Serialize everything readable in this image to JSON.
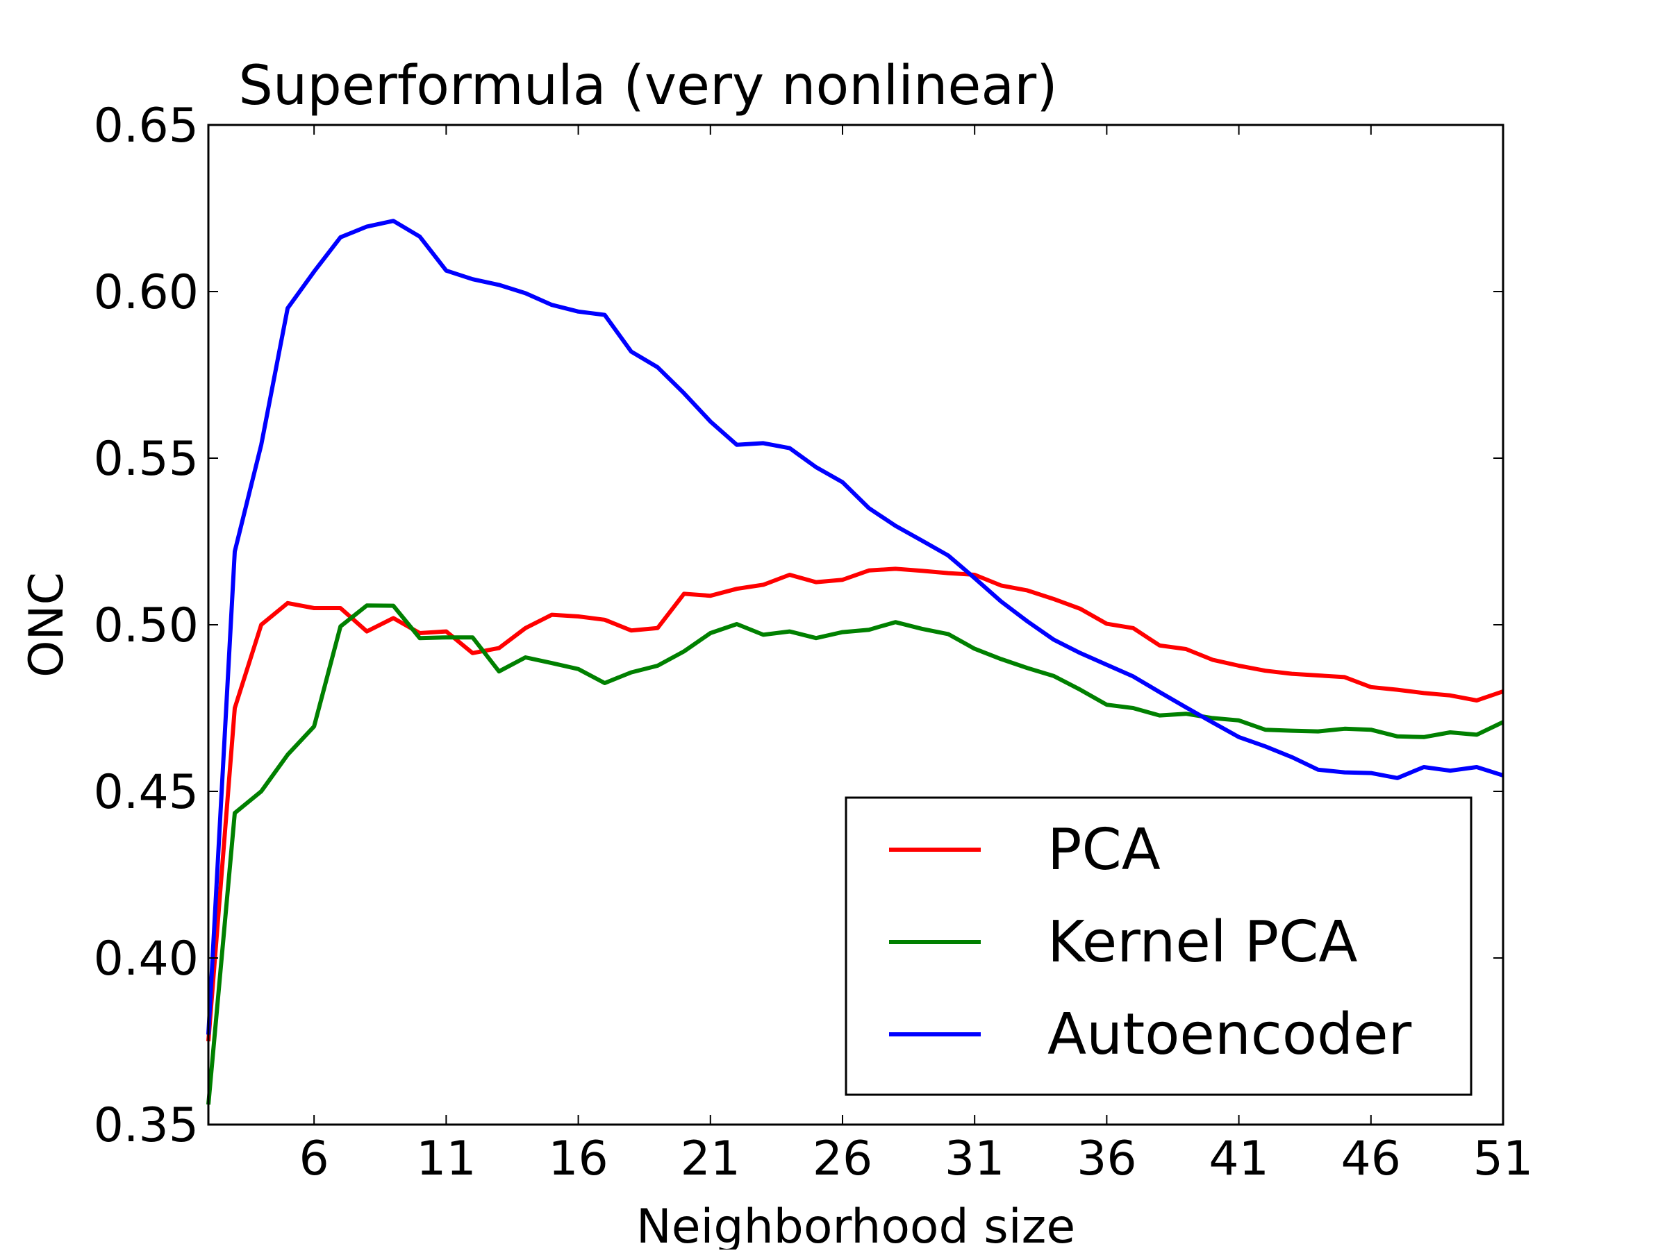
{
  "chart_data": {
    "type": "line",
    "title": "Superformula (very nonlinear)",
    "xlabel": "Neighborhood size",
    "ylabel": "ONC",
    "xlim": [
      2,
      51
    ],
    "ylim": [
      0.35,
      0.65
    ],
    "xticks": [
      6,
      11,
      16,
      21,
      26,
      31,
      36,
      41,
      46,
      51
    ],
    "xtick_labels": [
      "6",
      "11",
      "16",
      "21",
      "26",
      "31",
      "36",
      "41",
      "46",
      "51"
    ],
    "yticks": [
      0.35,
      0.4,
      0.45,
      0.5,
      0.55,
      0.6,
      0.65
    ],
    "ytick_labels": [
      "0.35",
      "0.40",
      "0.45",
      "0.50",
      "0.55",
      "0.60",
      "0.65"
    ],
    "grid": false,
    "legend_position": "lower right",
    "x": [
      2,
      3,
      4,
      5,
      6,
      7,
      8,
      9,
      10,
      11,
      12,
      13,
      14,
      15,
      16,
      17,
      18,
      19,
      20,
      21,
      22,
      23,
      24,
      25,
      26,
      27,
      28,
      29,
      30,
      31,
      32,
      33,
      34,
      35,
      36,
      37,
      38,
      39,
      40,
      41,
      42,
      43,
      44,
      45,
      46,
      47,
      48,
      49,
      50,
      51
    ],
    "series": [
      {
        "name": "PCA",
        "color": "#ff0000",
        "values": [
          0.375,
          0.475,
          0.5,
          0.5065,
          0.505,
          0.505,
          0.498,
          0.502,
          0.4975,
          0.498,
          0.4915,
          0.493,
          0.499,
          0.503,
          0.5025,
          0.5015,
          0.4983,
          0.499,
          0.5093,
          0.5087,
          0.5108,
          0.512,
          0.515,
          0.5128,
          0.5135,
          0.5163,
          0.5168,
          0.5162,
          0.5155,
          0.515,
          0.5118,
          0.5103,
          0.5077,
          0.5048,
          0.5003,
          0.499,
          0.4938,
          0.4927,
          0.4895,
          0.4877,
          0.4862,
          0.4853,
          0.4848,
          0.4843,
          0.4813,
          0.4805,
          0.4795,
          0.4788,
          0.4773,
          0.48
        ]
      },
      {
        "name": "Kernel PCA",
        "color": "#008000",
        "values": [
          0.356,
          0.4435,
          0.45,
          0.461,
          0.4695,
          0.4995,
          0.5058,
          0.5057,
          0.496,
          0.4962,
          0.4962,
          0.486,
          0.4902,
          0.4885,
          0.4867,
          0.4825,
          0.4857,
          0.4877,
          0.492,
          0.4975,
          0.5002,
          0.497,
          0.498,
          0.496,
          0.4978,
          0.4985,
          0.5008,
          0.4988,
          0.4972,
          0.4928,
          0.4897,
          0.487,
          0.4846,
          0.4805,
          0.476,
          0.475,
          0.4728,
          0.4733,
          0.472,
          0.4713,
          0.4685,
          0.4682,
          0.468,
          0.4688,
          0.4685,
          0.4665,
          0.4663,
          0.4677,
          0.467,
          0.4708
        ]
      },
      {
        "name": "Autoencoder",
        "color": "#0000ff",
        "values": [
          0.377,
          0.522,
          0.554,
          0.595,
          0.606,
          0.6163,
          0.6195,
          0.6212,
          0.6165,
          0.6063,
          0.6037,
          0.602,
          0.5995,
          0.596,
          0.594,
          0.593,
          0.582,
          0.5773,
          0.5695,
          0.561,
          0.554,
          0.5545,
          0.553,
          0.5473,
          0.5428,
          0.535,
          0.5297,
          0.5253,
          0.5208,
          0.514,
          0.507,
          0.501,
          0.4955,
          0.4915,
          0.488,
          0.4845,
          0.4798,
          0.4752,
          0.4707,
          0.4663,
          0.4635,
          0.4603,
          0.4565,
          0.4557,
          0.4555,
          0.454,
          0.4573,
          0.4562,
          0.4573,
          0.4548
        ]
      }
    ]
  }
}
